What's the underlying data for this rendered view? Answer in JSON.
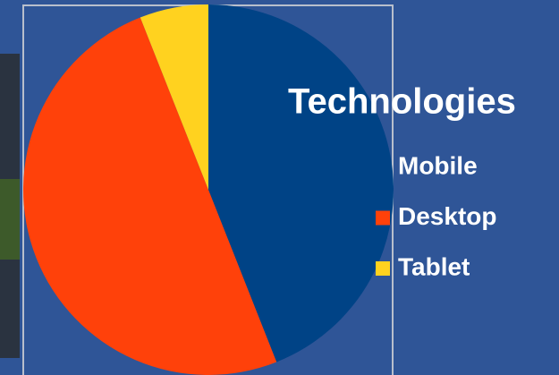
{
  "chart_data": {
    "type": "pie",
    "title": "Technologies",
    "categories": [
      "Mobile",
      "Desktop",
      "Tablet"
    ],
    "values": [
      44,
      50,
      6
    ],
    "colors": [
      "#004386",
      "#ff410a",
      "#ffd21f"
    ],
    "legend": "right"
  }
}
